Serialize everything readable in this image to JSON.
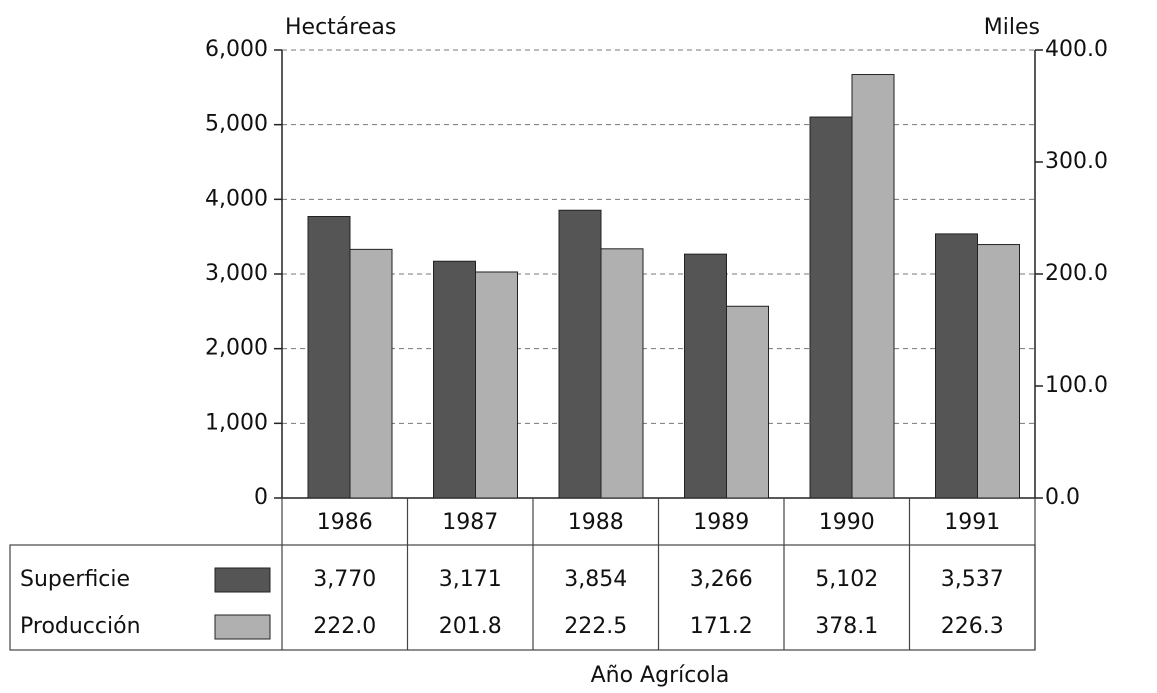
{
  "chart_data": {
    "type": "bar",
    "y_label": "Hectáreas",
    "y2_label": "Miles",
    "x_label": "Año Agrícola",
    "categories": [
      "1986",
      "1987",
      "1988",
      "1989",
      "1990",
      "1991"
    ],
    "series": [
      {
        "name": "Superficie",
        "color": "#555555",
        "axis": "y",
        "values": [
          3770,
          3171,
          3854,
          3266,
          5102,
          3537
        ],
        "value_labels": [
          "3,770",
          "3,171",
          "3,854",
          "3,266",
          "5,102",
          "3,537"
        ]
      },
      {
        "name": "Producción",
        "color": "#b0b0b0",
        "axis": "y2",
        "values": [
          222.0,
          201.8,
          222.5,
          171.2,
          378.1,
          226.3
        ],
        "value_labels": [
          "222.0",
          "201.8",
          "222.5",
          "171.2",
          "378.1",
          "226.3"
        ]
      }
    ],
    "ylim": [
      0,
      6000
    ],
    "yticks": [
      0,
      {
        "value": 1000,
        "label": "1,000"
      },
      {
        "value": 2000,
        "label": "2,000"
      },
      {
        "value": 3000,
        "label": "3,000"
      },
      {
        "value": 4000,
        "label": "4,000"
      },
      {
        "value": 5000,
        "label": "5,000"
      },
      {
        "value": 6000,
        "label": "6,000"
      }
    ],
    "y2lim": [
      0,
      400
    ],
    "y2ticks": [
      {
        "value": 0,
        "label": "0.0"
      },
      {
        "value": 100,
        "label": "100.0"
      },
      {
        "value": 200,
        "label": "200.0"
      },
      {
        "value": 300,
        "label": "300.0"
      },
      {
        "value": 400,
        "label": "400.0"
      }
    ],
    "grid": true
  }
}
